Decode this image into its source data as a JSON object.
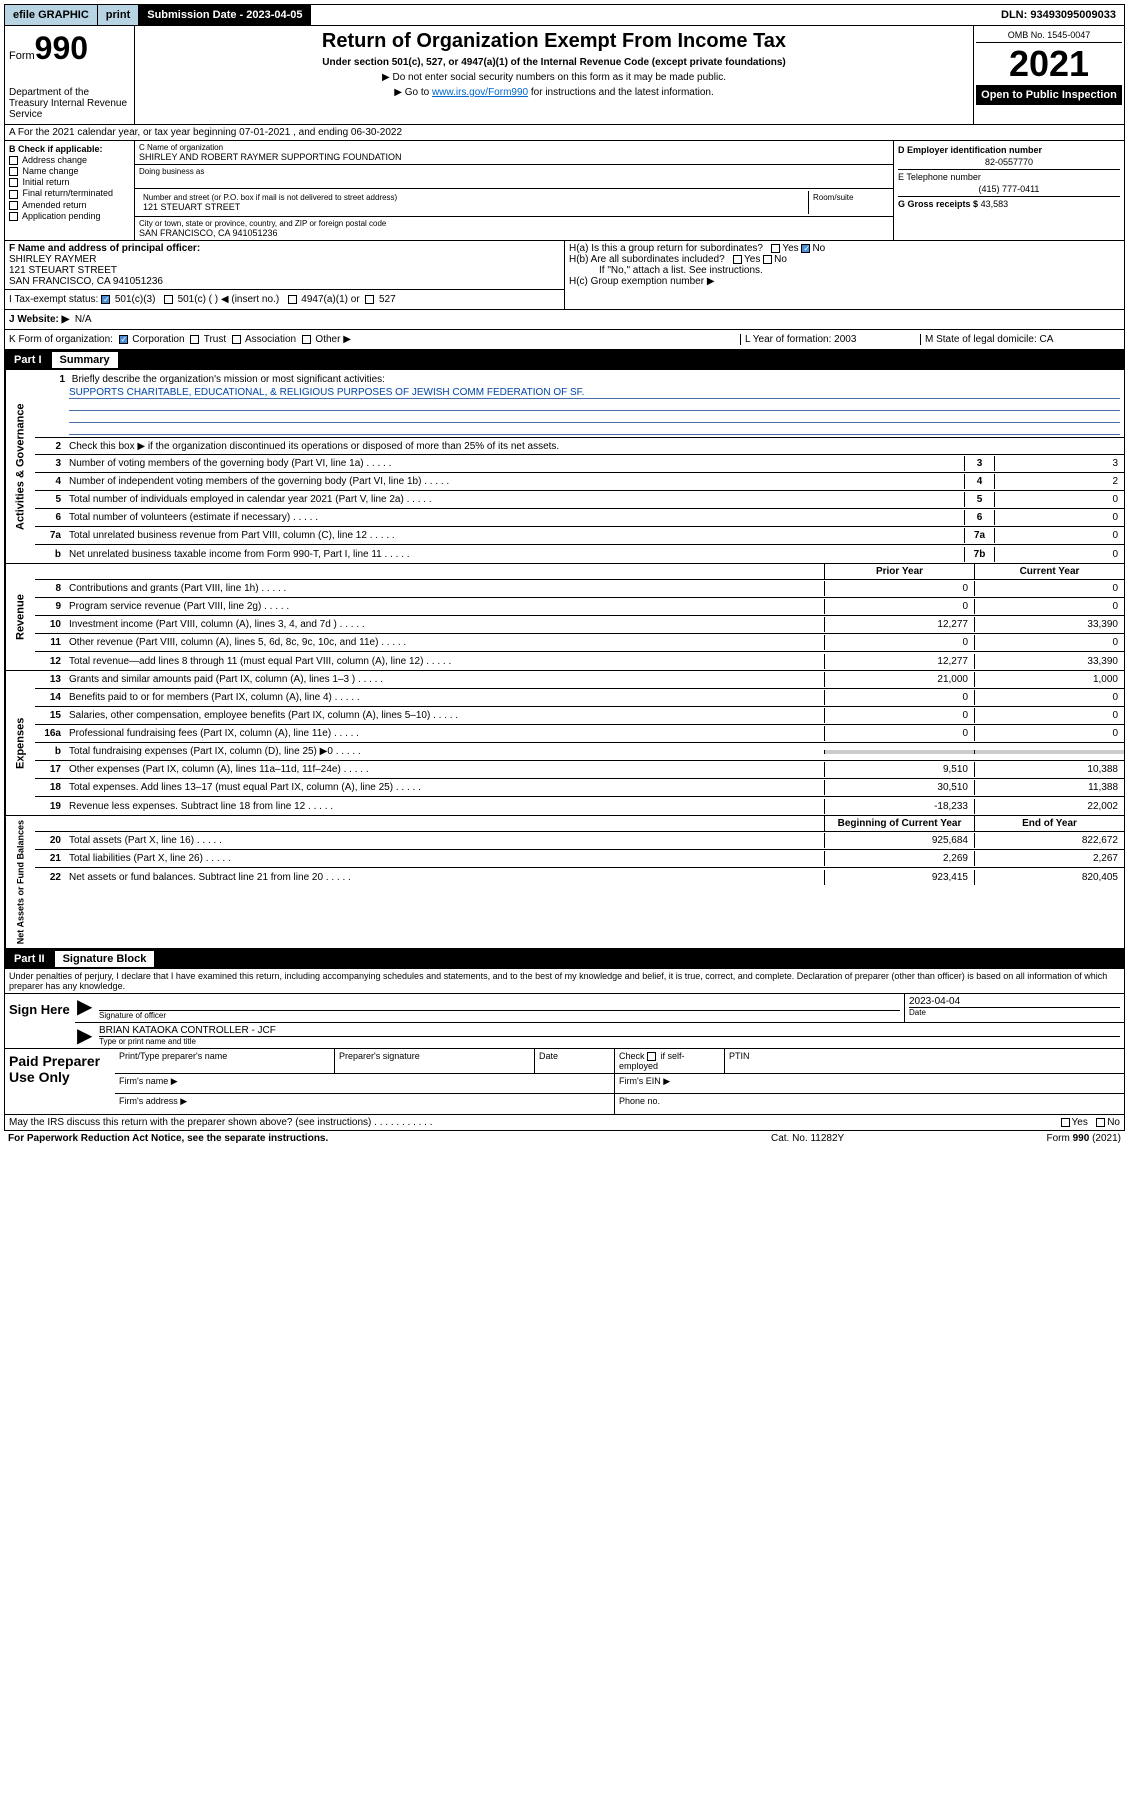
{
  "topbar": {
    "efile": "efile GRAPHIC",
    "print": "print",
    "subdate_label": "Submission Date - 2023-04-05",
    "dln": "DLN: 93493095009033"
  },
  "header": {
    "form_label": "Form",
    "form_num": "990",
    "dept": "Department of the Treasury Internal Revenue Service",
    "title": "Return of Organization Exempt From Income Tax",
    "sub1": "Under section 501(c), 527, or 4947(a)(1) of the Internal Revenue Code (except private foundations)",
    "sub2": "▶ Do not enter social security numbers on this form as it may be made public.",
    "sub3_pre": "▶ Go to ",
    "sub3_link": "www.irs.gov/Form990",
    "sub3_post": " for instructions and the latest information.",
    "omb": "OMB No. 1545-0047",
    "year": "2021",
    "inspection": "Open to Public Inspection"
  },
  "row_a": "A For the 2021 calendar year, or tax year beginning 07-01-2021   , and ending 06-30-2022",
  "col_b": {
    "label": "B Check if applicable:",
    "items": [
      "Address change",
      "Name change",
      "Initial return",
      "Final return/terminated",
      "Amended return",
      "Application pending"
    ]
  },
  "col_c": {
    "name_label": "C Name of organization",
    "name": "SHIRLEY AND ROBERT RAYMER SUPPORTING FOUNDATION",
    "dba_label": "Doing business as",
    "addr_label": "Number and street (or P.O. box if mail is not delivered to street address)",
    "room_label": "Room/suite",
    "addr": "121 STEUART STREET",
    "city_label": "City or town, state or province, country, and ZIP or foreign postal code",
    "city": "SAN FRANCISCO, CA  941051236"
  },
  "col_d": {
    "d_label": "D Employer identification number",
    "d_val": "82-0557770",
    "e_label": "E Telephone number",
    "e_val": "(415) 777-0411",
    "g_label": "G Gross receipts $",
    "g_val": "43,583"
  },
  "row_f": {
    "label": "F Name and address of principal officer:",
    "name": "SHIRLEY RAYMER",
    "addr1": "121 STEUART STREET",
    "addr2": "SAN FRANCISCO, CA  941051236"
  },
  "col_h": {
    "ha_label": "H(a)  Is this a group return for subordinates?",
    "hb_label": "H(b)  Are all subordinates included?",
    "h_note": "If \"No,\" attach a list. See instructions.",
    "hc_label": "H(c)  Group exemption number ▶",
    "yes": "Yes",
    "no": "No"
  },
  "row_i": {
    "label": "I   Tax-exempt status:",
    "opts": [
      "501(c)(3)",
      "501(c) (  ) ◀ (insert no.)",
      "4947(a)(1) or",
      "527"
    ]
  },
  "row_j": {
    "label": "J   Website: ▶",
    "val": "N/A"
  },
  "row_k": {
    "l_label": "K Form of organization:",
    "opts": [
      "Corporation",
      "Trust",
      "Association",
      "Other ▶"
    ],
    "m_label": "L Year of formation:",
    "m_val": "2003",
    "r_label": "M State of legal domicile:",
    "r_val": "CA"
  },
  "part1": {
    "num": "Part I",
    "title": "Summary"
  },
  "summary": {
    "tab1": "Activities & Governance",
    "q1_label": "Briefly describe the organization's mission or most significant activities:",
    "q1_val": "SUPPORTS CHARITABLE, EDUCATIONAL, & RELIGIOUS PURPOSES OF JEWISH COMM FEDERATION OF SF.",
    "q2_label": "Check this box ▶       if the organization discontinued its operations or disposed of more than 25% of its net assets.",
    "rows_gov": [
      {
        "n": "3",
        "label": "Number of voting members of the governing body (Part VI, line 1a)",
        "box": "3",
        "val": "3"
      },
      {
        "n": "4",
        "label": "Number of independent voting members of the governing body (Part VI, line 1b)",
        "box": "4",
        "val": "2"
      },
      {
        "n": "5",
        "label": "Total number of individuals employed in calendar year 2021 (Part V, line 2a)",
        "box": "5",
        "val": "0"
      },
      {
        "n": "6",
        "label": "Total number of volunteers (estimate if necessary)",
        "box": "6",
        "val": "0"
      },
      {
        "n": "7a",
        "label": "Total unrelated business revenue from Part VIII, column (C), line 12",
        "box": "7a",
        "val": "0"
      },
      {
        "n": "b",
        "label": "Net unrelated business taxable income from Form 990-T, Part I, line 11",
        "box": "7b",
        "val": "0"
      }
    ],
    "tab2": "Revenue",
    "fin_hdr_c": "Prior Year",
    "fin_hdr_r": "Current Year",
    "rows_rev": [
      {
        "n": "8",
        "label": "Contributions and grants (Part VIII, line 1h)",
        "c": "0",
        "r": "0"
      },
      {
        "n": "9",
        "label": "Program service revenue (Part VIII, line 2g)",
        "c": "0",
        "r": "0"
      },
      {
        "n": "10",
        "label": "Investment income (Part VIII, column (A), lines 3, 4, and 7d )",
        "c": "12,277",
        "r": "33,390"
      },
      {
        "n": "11",
        "label": "Other revenue (Part VIII, column (A), lines 5, 6d, 8c, 9c, 10c, and 11e)",
        "c": "0",
        "r": "0"
      },
      {
        "n": "12",
        "label": "Total revenue—add lines 8 through 11 (must equal Part VIII, column (A), line 12)",
        "c": "12,277",
        "r": "33,390"
      }
    ],
    "tab3": "Expenses",
    "rows_exp": [
      {
        "n": "13",
        "label": "Grants and similar amounts paid (Part IX, column (A), lines 1–3 )",
        "c": "21,000",
        "r": "1,000"
      },
      {
        "n": "14",
        "label": "Benefits paid to or for members (Part IX, column (A), line 4)",
        "c": "0",
        "r": "0"
      },
      {
        "n": "15",
        "label": "Salaries, other compensation, employee benefits (Part IX, column (A), lines 5–10)",
        "c": "0",
        "r": "0"
      },
      {
        "n": "16a",
        "label": "Professional fundraising fees (Part IX, column (A), line 11e)",
        "c": "0",
        "r": "0"
      },
      {
        "n": "b",
        "label": "Total fundraising expenses (Part IX, column (D), line 25) ▶0",
        "c": "",
        "r": "",
        "gray": true
      },
      {
        "n": "17",
        "label": "Other expenses (Part IX, column (A), lines 11a–11d, 11f–24e)",
        "c": "9,510",
        "r": "10,388"
      },
      {
        "n": "18",
        "label": "Total expenses. Add lines 13–17 (must equal Part IX, column (A), line 25)",
        "c": "30,510",
        "r": "11,388"
      },
      {
        "n": "19",
        "label": "Revenue less expenses. Subtract line 18 from line 12",
        "c": "-18,233",
        "r": "22,002"
      }
    ],
    "tab4": "Net Assets or Fund Balances",
    "fin_hdr2_c": "Beginning of Current Year",
    "fin_hdr2_r": "End of Year",
    "rows_net": [
      {
        "n": "20",
        "label": "Total assets (Part X, line 16)",
        "c": "925,684",
        "r": "822,672"
      },
      {
        "n": "21",
        "label": "Total liabilities (Part X, line 26)",
        "c": "2,269",
        "r": "2,267"
      },
      {
        "n": "22",
        "label": "Net assets or fund balances. Subtract line 21 from line 20",
        "c": "923,415",
        "r": "820,405"
      }
    ]
  },
  "part2": {
    "num": "Part II",
    "title": "Signature Block"
  },
  "sig": {
    "decl": "Under penalties of perjury, I declare that I have examined this return, including accompanying schedules and statements, and to the best of my knowledge and belief, it is true, correct, and complete. Declaration of preparer (other than officer) is based on all information of which preparer has any knowledge.",
    "sign_here": "Sign Here",
    "sig_label": "Signature of officer",
    "date_label": "Date",
    "date_val": "2023-04-04",
    "name_val": "BRIAN KATAOKA  CONTROLLER - JCF",
    "name_label": "Type or print name and title"
  },
  "paid": {
    "label": "Paid Preparer Use Only",
    "h1": "Print/Type preparer's name",
    "h2": "Preparer's signature",
    "h3": "Date",
    "h4_pre": "Check",
    "h4_post": "if self-employed",
    "h5": "PTIN",
    "firm_name": "Firm's name    ▶",
    "firm_ein": "Firm's EIN ▶",
    "firm_addr": "Firm's address ▶",
    "phone": "Phone no."
  },
  "footer": {
    "discuss": "May the IRS discuss this return with the preparer shown above? (see instructions)",
    "yes": "Yes",
    "no": "No",
    "paperwork": "For Paperwork Reduction Act Notice, see the separate instructions.",
    "cat": "Cat. No. 11282Y",
    "form": "Form 990 (2021)"
  }
}
